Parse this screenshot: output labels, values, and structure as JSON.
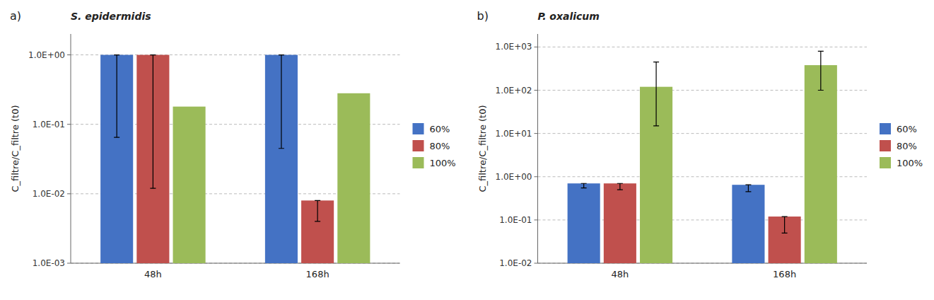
{
  "chart_data": [
    {
      "type": "bar",
      "title": "a)",
      "annotations": [
        {
          "text": "S. epidermidis"
        }
      ],
      "categories": [
        "48h",
        "168h"
      ],
      "y_label": "C_filtre/C_filtre (t0)",
      "log": "y",
      "ylim": [
        0.001,
        2
      ],
      "yticks": [
        {
          "value": 0.001,
          "label": "1.0E-03"
        },
        {
          "value": 0.01,
          "label": "1.0E-02"
        },
        {
          "value": 0.1,
          "label": "1.0E-01"
        },
        {
          "value": 1,
          "label": "1.0E+00"
        }
      ],
      "grid": true,
      "legend": "right",
      "series": [
        {
          "name": "60%",
          "color": "#4472C4",
          "values": [
            1.0,
            1.0
          ],
          "whisker_low": [
            0.065,
            0.045
          ],
          "whisker_high": [
            null,
            null
          ]
        },
        {
          "name": "80%",
          "color": "#C0504D",
          "values": [
            1.0,
            0.008
          ],
          "whisker_low": [
            0.012,
            0.004
          ],
          "whisker_high": [
            null,
            null
          ]
        },
        {
          "name": "100%",
          "color": "#9BBB59",
          "values": [
            0.18,
            0.28
          ],
          "whisker_low": [
            null,
            null
          ],
          "whisker_high": [
            null,
            null
          ]
        }
      ]
    },
    {
      "type": "bar",
      "title": "b)",
      "annotations": [
        {
          "text": "P. oxalicum"
        }
      ],
      "categories": [
        "48h",
        "168h"
      ],
      "y_label": "C_filtre/C_filtre (t0)",
      "log": "y",
      "ylim": [
        0.01,
        2000
      ],
      "yticks": [
        {
          "value": 0.01,
          "label": "1.0E-02"
        },
        {
          "value": 0.1,
          "label": "1.0E-01"
        },
        {
          "value": 1,
          "label": "1.0E+00"
        },
        {
          "value": 10,
          "label": "1.0E+01"
        },
        {
          "value": 100,
          "label": "1.0E+02"
        },
        {
          "value": 1000,
          "label": "1.0E+03"
        }
      ],
      "grid": true,
      "legend": "right",
      "series": [
        {
          "name": "60%",
          "color": "#4472C4",
          "values": [
            0.7,
            0.65
          ],
          "whisker_low": [
            0.55,
            0.45
          ],
          "whisker_high": [
            null,
            null
          ]
        },
        {
          "name": "80%",
          "color": "#C0504D",
          "values": [
            0.7,
            0.12
          ],
          "whisker_low": [
            0.5,
            0.05
          ],
          "whisker_high": [
            null,
            null
          ]
        },
        {
          "name": "100%",
          "color": "#9BBB59",
          "values": [
            120.0,
            380.0
          ],
          "whisker_low": [
            15.0,
            100.0
          ],
          "whisker_high": [
            450.0,
            800.0
          ]
        }
      ]
    }
  ]
}
